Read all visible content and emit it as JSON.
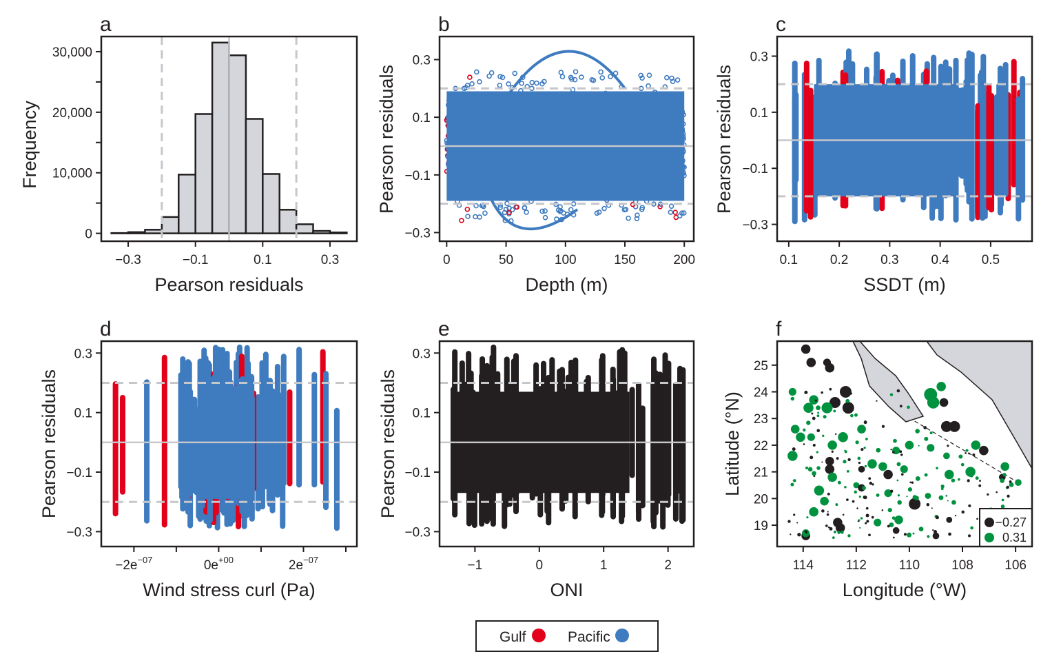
{
  "chart_data": [
    {
      "panel": "a",
      "type": "bar",
      "xlabel": "Pearson residuals",
      "ylabel": "Frequency",
      "xlim": [
        -0.38,
        0.38
      ],
      "ylim": [
        -1300,
        32500
      ],
      "xticks": [
        -0.3,
        -0.1,
        0.1,
        0.3
      ],
      "xtick_labels": [
        "−0.3",
        "−0.1",
        "0.1",
        "0.3"
      ],
      "yticks": [
        0,
        10000,
        20000,
        30000
      ],
      "ytick_labels": [
        "0",
        "10,000",
        "20,000",
        "30,000"
      ],
      "bin_edges": [
        -0.35,
        -0.3,
        -0.25,
        -0.2,
        -0.15,
        -0.1,
        -0.05,
        0,
        0.05,
        0.1,
        0.15,
        0.2,
        0.25,
        0.3,
        0.35
      ],
      "values": [
        50,
        200,
        600,
        2700,
        9700,
        19700,
        31500,
        29400,
        18900,
        9800,
        3900,
        1500,
        400,
        150
      ],
      "reference_lines": {
        "solid": [
          0
        ],
        "dashed": [
          -0.2,
          0.2
        ]
      },
      "bar_color": "#d5d6db"
    },
    {
      "panel": "b",
      "type": "scatter",
      "xlabel": "Depth (m)",
      "ylabel": "Pearson residuals",
      "xlim": [
        -6,
        208
      ],
      "ylim": [
        -0.33,
        0.38
      ],
      "xticks": [
        0,
        50,
        100,
        150,
        200
      ],
      "xtick_labels": [
        "0",
        "50",
        "100",
        "150",
        "200"
      ],
      "yticks": [
        -0.3,
        -0.1,
        0.1,
        0.3
      ],
      "ytick_labels": [
        "−0.3",
        "−0.1",
        "0.1",
        "0.3"
      ],
      "reference_lines": {
        "solid": [
          0
        ],
        "dashed": [
          -0.2,
          0.2
        ]
      },
      "x_range": [
        0,
        200
      ],
      "residual_range": [
        -0.3,
        0.33
      ]
    },
    {
      "panel": "c",
      "type": "scatter",
      "xlabel": "SSDT (m)",
      "ylabel": "Pearson residuals",
      "xlim": [
        0.077,
        0.582
      ],
      "ylim": [
        -0.36,
        0.37
      ],
      "xticks": [
        0.1,
        0.2,
        0.3,
        0.4,
        0.5
      ],
      "xtick_labels": [
        "0.1",
        "0.2",
        "0.3",
        "0.4",
        "0.5"
      ],
      "yticks": [
        -0.3,
        -0.1,
        0.1,
        0.3
      ],
      "ytick_labels": [
        "−0.3",
        "−0.1",
        "0.1",
        "0.3"
      ],
      "reference_lines": {
        "solid": [
          0
        ],
        "dashed": [
          -0.2,
          0.2
        ]
      },
      "x_range": [
        0.1,
        0.57
      ],
      "residual_range": [
        -0.3,
        0.33
      ]
    },
    {
      "panel": "d",
      "type": "scatter",
      "xlabel": "Wind stress curl (Pa)",
      "ylabel": "Pearson residuals",
      "xlim": [
        -2.77e-07,
        3.26e-07
      ],
      "ylim": [
        -0.35,
        0.34
      ],
      "xticks": [
        -2e-07,
        0,
        2e-07
      ],
      "xtick_labels": [
        {
          "base": "−2e",
          "exp": "−07"
        },
        {
          "base": "0e",
          "exp": "+00"
        },
        {
          "base": "2e",
          "exp": "−07"
        }
      ],
      "minor_xticks": [
        -1e-07,
        1e-07,
        3e-07
      ],
      "yticks": [
        -0.3,
        -0.1,
        0.1,
        0.3
      ],
      "ytick_labels": [
        "−0.3",
        "−0.1",
        "0.1",
        "0.3"
      ],
      "reference_lines": {
        "solid": [
          0
        ],
        "dashed": [
          -0.2,
          0.2
        ]
      },
      "x_range": [
        -2.6e-07,
        3e-07
      ],
      "residual_range": [
        -0.31,
        0.33
      ]
    },
    {
      "panel": "e",
      "type": "scatter",
      "xlabel": "ONI",
      "ylabel": "Pearson residuals",
      "xlim": [
        -1.55,
        2.4
      ],
      "ylim": [
        -0.35,
        0.34
      ],
      "xticks": [
        -1,
        0,
        1,
        2
      ],
      "xtick_labels": [
        "−1",
        "0",
        "1",
        "2"
      ],
      "yticks": [
        -0.3,
        -0.1,
        0.1,
        0.3
      ],
      "ytick_labels": [
        "−0.3",
        "−0.1",
        "0.1",
        "0.3"
      ],
      "reference_lines": {
        "solid": [
          0
        ],
        "dashed": [
          -0.2,
          0.2
        ]
      },
      "x_range": [
        -1.4,
        2.3
      ],
      "residual_range": [
        -0.31,
        0.33
      ],
      "color": "#231f20"
    },
    {
      "panel": "f",
      "type": "scatter",
      "xlabel": "Longitude (°W)",
      "ylabel": "Latitude (°N)",
      "xlim": [
        114.98,
        105.38
      ],
      "ylim": [
        18.2,
        25.9
      ],
      "xticks": [
        114,
        112,
        110,
        108,
        106
      ],
      "xtick_labels": [
        "114",
        "112",
        "110",
        "108",
        "106"
      ],
      "yticks": [
        19,
        20,
        21,
        22,
        23,
        24,
        25
      ],
      "ytick_labels": [
        "19",
        "20",
        "21",
        "22",
        "23",
        "24",
        "25"
      ],
      "legend": [
        {
          "label": "−0.27",
          "color": "#231f20"
        },
        {
          "label": "0.31",
          "color": "#00923f"
        }
      ],
      "legend_placement": "bottom-right",
      "points": [
        [
          113.9,
          25.6,
          -0.2
        ],
        [
          113.7,
          25.1,
          -0.2
        ],
        [
          113.1,
          25.1,
          -0.15
        ],
        [
          113.0,
          24.9,
          -0.2
        ],
        [
          112.4,
          24.0,
          -0.27
        ],
        [
          112.3,
          23.4,
          -0.27
        ],
        [
          112.8,
          23.6,
          -0.25
        ],
        [
          114.4,
          24.0,
          0.15
        ],
        [
          113.6,
          23.7,
          0.2
        ],
        [
          113.8,
          23.4,
          0.22
        ],
        [
          113.1,
          23.4,
          0.25
        ],
        [
          114.3,
          22.6,
          0.18
        ],
        [
          114.1,
          22.3,
          0.2
        ],
        [
          113.7,
          22.3,
          0.15
        ],
        [
          114.4,
          21.6,
          0.22
        ],
        [
          112.9,
          22.0,
          0.2
        ],
        [
          112.5,
          22.3,
          0.22
        ],
        [
          111.8,
          22.6,
          0.18
        ],
        [
          113.0,
          21.1,
          -0.2
        ],
        [
          113.0,
          21.4,
          -0.18
        ],
        [
          109.2,
          23.9,
          0.31
        ],
        [
          109.1,
          23.6,
          0.28
        ],
        [
          108.8,
          24.2,
          0.2
        ],
        [
          108.6,
          22.7,
          -0.25
        ],
        [
          108.3,
          22.7,
          -0.25
        ],
        [
          108.7,
          23.6,
          -0.18
        ],
        [
          107.2,
          21.8,
          -0.2
        ],
        [
          107.5,
          22.0,
          0.2
        ],
        [
          106.4,
          21.2,
          0.18
        ],
        [
          106.5,
          20.8,
          -0.12
        ],
        [
          105.9,
          20.6,
          0.12
        ],
        [
          107.7,
          21.0,
          0.22
        ],
        [
          108.5,
          20.9,
          0.2
        ],
        [
          109.2,
          21.9,
          0.15
        ],
        [
          110.0,
          22.0,
          0.18
        ],
        [
          111.4,
          21.3,
          0.2
        ],
        [
          110.8,
          20.9,
          -0.2
        ],
        [
          110.8,
          20.2,
          0.15
        ],
        [
          109.8,
          19.8,
          -0.27
        ],
        [
          108.5,
          19.2,
          -0.1
        ],
        [
          109.0,
          18.6,
          -0.12
        ],
        [
          110.5,
          18.8,
          -0.12
        ],
        [
          110.4,
          19.2,
          0.18
        ],
        [
          111.2,
          19.1,
          0.15
        ],
        [
          112.7,
          19.1,
          -0.2
        ],
        [
          112.6,
          18.9,
          -0.2
        ],
        [
          113.9,
          18.6,
          -0.18
        ],
        [
          113.9,
          18.7,
          0.15
        ],
        [
          113.6,
          19.5,
          0.2
        ],
        [
          113.4,
          20.3,
          0.22
        ],
        [
          113.2,
          19.9,
          0.18
        ],
        [
          112.9,
          20.8,
          0.2
        ],
        [
          112.0,
          20.5,
          0.1
        ],
        [
          111.8,
          21.1,
          -0.12
        ],
        [
          111.8,
          20.4,
          -0.14
        ],
        [
          111.0,
          21.2,
          0.18
        ],
        [
          110.2,
          21.1,
          0.15
        ],
        [
          110.5,
          21.8,
          0.15
        ],
        [
          109.3,
          20.1,
          0.1
        ],
        [
          108.6,
          21.6,
          0.12
        ]
      ]
    }
  ],
  "series_legend": [
    {
      "label": "Gulf",
      "color": "#e2001a"
    },
    {
      "label": "Pacific",
      "color": "#3f7bbf"
    }
  ],
  "panel_labels": [
    "a",
    "b",
    "c",
    "d",
    "e",
    "f"
  ]
}
